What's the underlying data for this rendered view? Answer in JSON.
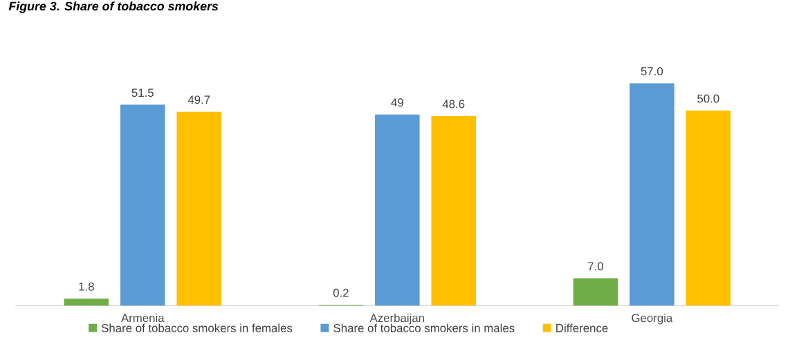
{
  "chart_data": {
    "type": "bar",
    "title": "Figure 3. Share of tobacco smokers",
    "categories": [
      "Armenia",
      "Azerbaijan",
      "Georgia"
    ],
    "series": [
      {
        "name": "Share of tobacco smokers in females",
        "color": "#70ad47",
        "values": [
          1.8,
          0.2,
          7.0
        ],
        "value_labels": [
          "1.8",
          "0.2",
          "7.0"
        ]
      },
      {
        "name": "Share of tobacco smokers in males",
        "color": "#5b9bd5",
        "values": [
          51.5,
          49,
          57.0
        ],
        "value_labels": [
          "51.5",
          "49",
          "57.0"
        ]
      },
      {
        "name": "Difference",
        "color": "#ffc000",
        "values": [
          49.7,
          48.6,
          50.0
        ],
        "value_labels": [
          "49.7",
          "48.6",
          "50.0"
        ]
      }
    ],
    "legend": "bottom"
  }
}
